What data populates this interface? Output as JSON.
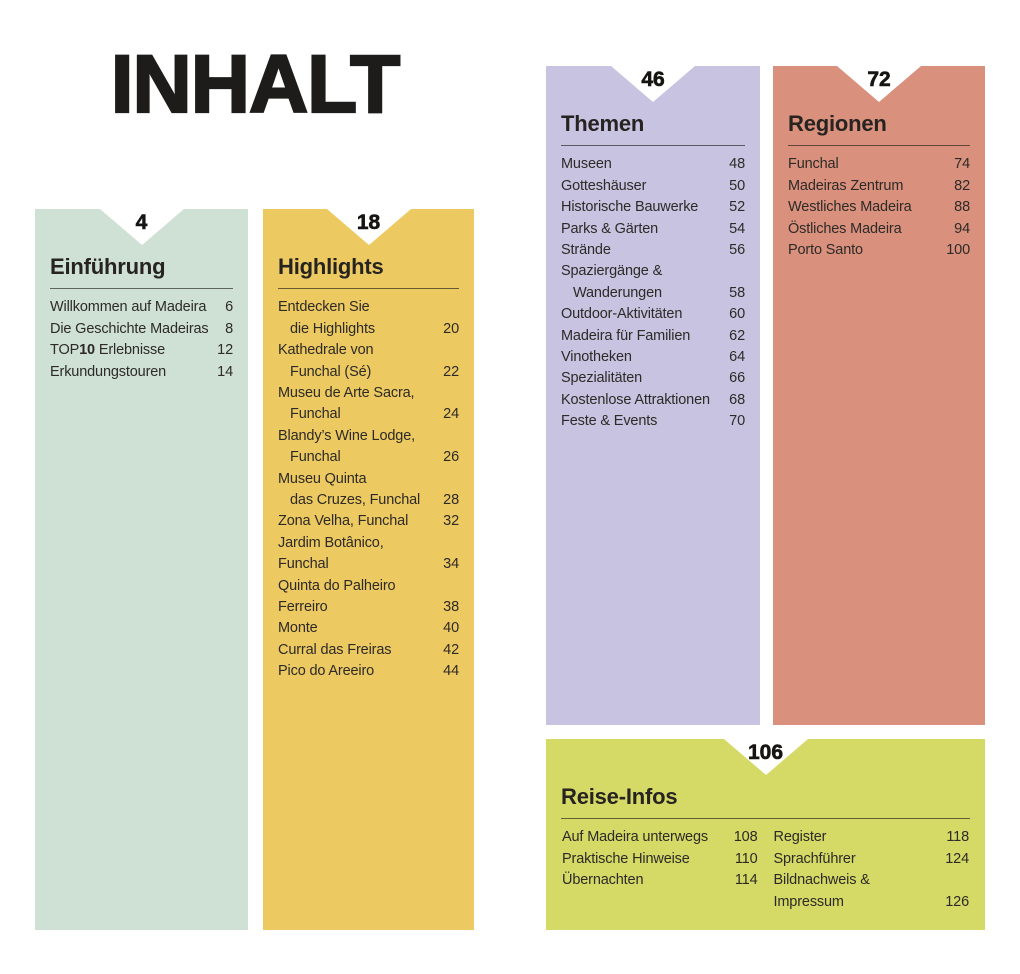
{
  "page": {
    "title": "INHALT"
  },
  "ink_color": "#2d2a27",
  "panels": [
    {
      "id": "einfuehrung",
      "page_number": "4",
      "title": "Einführung",
      "color": "#cfe0d5",
      "entries": [
        {
          "lines": [
            "Willkommen auf Madeira"
          ],
          "page": "6"
        },
        {
          "lines": [
            "Die Geschichte Madeiras"
          ],
          "page": "8"
        },
        {
          "rich": [
            {
              "text": "TOP"
            },
            {
              "text": "10",
              "bold": true
            },
            {
              "text": " Erlebnisse"
            }
          ],
          "page": "12"
        },
        {
          "lines": [
            "Erkundungstouren"
          ],
          "page": "14"
        }
      ]
    },
    {
      "id": "highlights",
      "page_number": "18",
      "title": "Highlights",
      "color": "#edca61",
      "entries": [
        {
          "lines": [
            "Entdecken Sie",
            "die Highlights"
          ],
          "page": "20"
        },
        {
          "lines": [
            "Kathedrale von",
            "Funchal (Sé)"
          ],
          "page": "22"
        },
        {
          "lines": [
            "Museu de Arte Sacra,",
            "Funchal"
          ],
          "page": "24"
        },
        {
          "lines": [
            "Blandy’s Wine Lodge,",
            "Funchal"
          ],
          "page": "26"
        },
        {
          "lines": [
            "Museu Quinta",
            "das Cruzes, Funchal"
          ],
          "page": "28"
        },
        {
          "lines": [
            "Zona Velha, Funchal"
          ],
          "page": "32"
        },
        {
          "lines": [
            "Jardim Botânico, Funchal"
          ],
          "page": "34"
        },
        {
          "lines": [
            "Quinta do Palheiro Ferreiro"
          ],
          "page": "38"
        },
        {
          "lines": [
            "Monte"
          ],
          "page": "40"
        },
        {
          "lines": [
            "Curral das Freiras"
          ],
          "page": "42"
        },
        {
          "lines": [
            "Pico do Areeiro"
          ],
          "page": "44"
        }
      ]
    },
    {
      "id": "themen",
      "page_number": "46",
      "title": "Themen",
      "color": "#c7c3e1",
      "entries": [
        {
          "lines": [
            "Museen"
          ],
          "page": "48"
        },
        {
          "lines": [
            "Gotteshäuser"
          ],
          "page": "50"
        },
        {
          "lines": [
            "Historische Bauwerke"
          ],
          "page": "52"
        },
        {
          "lines": [
            "Parks & Gärten"
          ],
          "page": "54"
        },
        {
          "lines": [
            "Strände"
          ],
          "page": "56"
        },
        {
          "lines": [
            "Spaziergänge &",
            "Wanderungen"
          ],
          "page": "58"
        },
        {
          "lines": [
            "Outdoor-Aktivitäten"
          ],
          "page": "60"
        },
        {
          "lines": [
            "Madeira für Familien"
          ],
          "page": "62"
        },
        {
          "lines": [
            "Vinotheken"
          ],
          "page": "64"
        },
        {
          "lines": [
            "Spezialitäten"
          ],
          "page": "66"
        },
        {
          "lines": [
            "Kostenlose Attraktionen"
          ],
          "page": "68"
        },
        {
          "lines": [
            "Feste & Events"
          ],
          "page": "70"
        }
      ]
    },
    {
      "id": "regionen",
      "page_number": "72",
      "title": "Regionen",
      "color": "#d9907d",
      "entries": [
        {
          "lines": [
            "Funchal"
          ],
          "page": "74"
        },
        {
          "lines": [
            "Madeiras Zentrum"
          ],
          "page": "82"
        },
        {
          "lines": [
            "Westliches Madeira"
          ],
          "page": "88"
        },
        {
          "lines": [
            "Östliches Madeira"
          ],
          "page": "94"
        },
        {
          "lines": [
            "Porto Santo"
          ],
          "page": "100"
        }
      ]
    },
    {
      "id": "reise-infos",
      "page_number": "106",
      "title": "Reise-Infos",
      "color": "#d5d966",
      "columns": [
        [
          {
            "lines": [
              "Auf Madeira unterwegs"
            ],
            "page": "108"
          },
          {
            "lines": [
              "Praktische Hinweise"
            ],
            "page": "110"
          },
          {
            "lines": [
              "Übernachten"
            ],
            "page": "114"
          }
        ],
        [
          {
            "lines": [
              "Register"
            ],
            "page": "118"
          },
          {
            "lines": [
              "Sprachführer"
            ],
            "page": "124"
          },
          {
            "lines": [
              "Bildnachweis & Impressum"
            ],
            "page": "126"
          }
        ]
      ]
    }
  ]
}
